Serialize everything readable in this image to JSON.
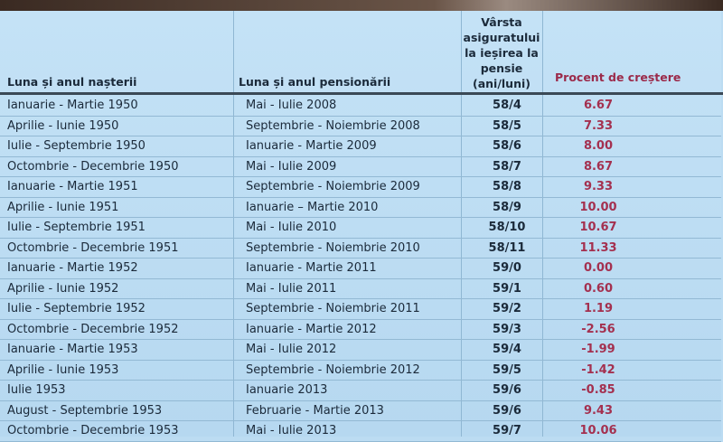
{
  "headers": {
    "birth": "Luna și anul nașterii",
    "retirement": "Luna și anul pensionării",
    "age_lines": [
      "Vârsta",
      "asiguratului",
      "la ieșirea la",
      "pensie",
      "(ani/luni)"
    ],
    "increase": "Procent de creștere"
  },
  "rows": [
    {
      "birth": "Ianuarie - Martie 1950",
      "retirement": "Mai - Iulie 2008",
      "age": "58/4",
      "increase": "6.67"
    },
    {
      "birth": "Aprilie - Iunie 1950",
      "retirement": "Septembrie - Noiembrie 2008",
      "age": "58/5",
      "increase": "7.33"
    },
    {
      "birth": "Iulie - Septembrie 1950",
      "retirement": "Ianuarie - Martie 2009",
      "age": "58/6",
      "increase": "8.00"
    },
    {
      "birth": "Octombrie - Decembrie 1950",
      "retirement": "Mai - Iulie 2009",
      "age": "58/7",
      "increase": "8.67"
    },
    {
      "birth": "Ianuarie - Martie 1951",
      "retirement": "Septembrie - Noiembrie 2009",
      "age": "58/8",
      "increase": "9.33"
    },
    {
      "birth": "Aprilie - Iunie 1951",
      "retirement": "Ianuarie – Martie 2010",
      "age": "58/9",
      "increase": "10.00"
    },
    {
      "birth": "Iulie - Septembrie 1951",
      "retirement": "Mai - Iulie 2010",
      "age": "58/10",
      "increase": "10.67"
    },
    {
      "birth": "Octombrie - Decembrie 1951",
      "retirement": "Septembrie - Noiembrie 2010",
      "age": "58/11",
      "increase": "11.33"
    },
    {
      "birth": "Ianuarie - Martie 1952",
      "retirement": "Ianuarie - Martie 2011",
      "age": "59/0",
      "increase": "0.00"
    },
    {
      "birth": "Aprilie - Iunie 1952",
      "retirement": "Mai - Iulie 2011",
      "age": "59/1",
      "increase": "0.60"
    },
    {
      "birth": "Iulie - Septembrie 1952",
      "retirement": "Septembrie - Noiembrie 2011",
      "age": "59/2",
      "increase": "1.19"
    },
    {
      "birth": "Octombrie - Decembrie 1952",
      "retirement": "Ianuarie - Martie 2012",
      "age": "59/3",
      "increase": "-2.56"
    },
    {
      "birth": "Ianuarie - Martie 1953",
      "retirement": "Mai - Iulie 2012",
      "age": "59/4",
      "increase": "-1.99"
    },
    {
      "birth": "Aprilie - Iunie 1953",
      "retirement": "Septembrie - Noiembrie 2012",
      "age": "59/5",
      "increase": "-1.42"
    },
    {
      "birth": "Iulie 1953",
      "retirement": "Ianuarie 2013",
      "age": "59/6",
      "increase": "-0.85"
    },
    {
      "birth": "August - Septembrie 1953",
      "retirement": "Februarie - Martie 2013",
      "age": "59/6",
      "increase": "9.43"
    },
    {
      "birth": "Octombrie - Decembrie 1953",
      "retirement": "Mai - Iulie 2013",
      "age": "59/7",
      "increase": "10.06"
    }
  ],
  "colors": {
    "background": "#bcdcf2",
    "increase_text": "#a4304f",
    "text": "#1b2a3a"
  }
}
